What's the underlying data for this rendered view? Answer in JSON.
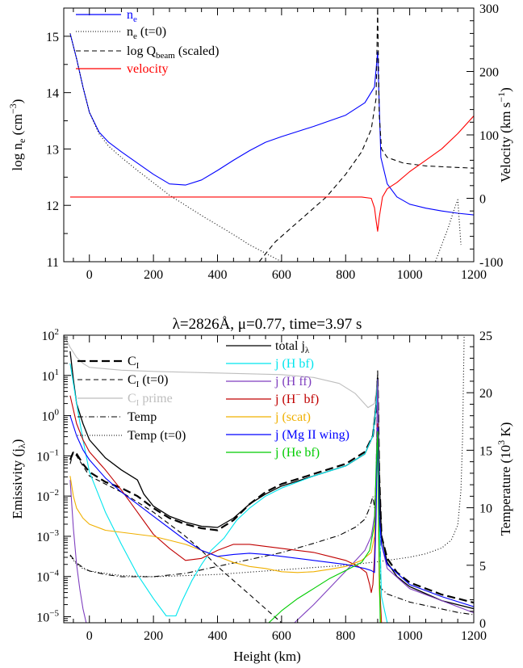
{
  "chart_data": [
    {
      "type": "line",
      "xlim": [
        -80,
        1200
      ],
      "ylim": [
        11,
        15.5
      ],
      "y2lim": [
        -100,
        300
      ],
      "x_ticks": [
        0,
        200,
        400,
        600,
        800,
        1000,
        1200
      ],
      "y_ticks": [
        11,
        12,
        13,
        14,
        15
      ],
      "y2_ticks": [
        -100,
        0,
        100,
        200,
        300
      ],
      "ylabel": "log n_e (cm^-3)",
      "y2label": "Velocity (km s^-1)",
      "legend": {
        "placement": "top-left",
        "entries": [
          {
            "label": "n_e",
            "color": "#0000ff"
          },
          {
            "label": "n_e (t=0)",
            "color": "#000000"
          },
          {
            "label": "log Q_beam (scaled)",
            "color": "#000000"
          },
          {
            "label": "velocity",
            "color": "#ff0000"
          }
        ]
      },
      "series": [
        {
          "name": "n_e",
          "axis": "left",
          "color": "#0000ff",
          "dash": "solid",
          "x": [
            -60,
            -40,
            -20,
            0,
            30,
            60,
            100,
            150,
            200,
            250,
            300,
            350,
            400,
            450,
            500,
            550,
            600,
            700,
            800,
            860,
            890,
            900,
            910,
            930,
            960,
            1000,
            1050,
            1100,
            1150,
            1200
          ],
          "y": [
            15.05,
            14.6,
            14.1,
            13.65,
            13.3,
            13.12,
            12.95,
            12.75,
            12.55,
            12.38,
            12.36,
            12.45,
            12.62,
            12.8,
            12.97,
            13.12,
            13.22,
            13.4,
            13.6,
            13.82,
            14.1,
            14.72,
            12.85,
            12.38,
            12.15,
            12.02,
            11.95,
            11.9,
            11.86,
            11.83
          ]
        },
        {
          "name": "n_e (t=0)",
          "axis": "left",
          "color": "#000000",
          "dash": "dotted",
          "x": [
            -60,
            -40,
            -20,
            0,
            30,
            60,
            100,
            150,
            200,
            250,
            300,
            350,
            400,
            450,
            500,
            550,
            600,
            1080,
            1100,
            1120,
            1140,
            1150,
            1160
          ],
          "y": [
            15.05,
            14.6,
            14.1,
            13.65,
            13.27,
            13.05,
            12.85,
            12.62,
            12.4,
            12.18,
            12.0,
            11.82,
            11.65,
            11.48,
            11.3,
            11.15,
            11.0,
            11.0,
            11.3,
            11.6,
            11.95,
            12.1,
            11.3
          ]
        },
        {
          "name": "log Q_beam (scaled)",
          "axis": "left",
          "color": "#000000",
          "dash": "dashed",
          "x": [
            530,
            580,
            620,
            680,
            740,
            800,
            850,
            880,
            895,
            900,
            905,
            912,
            930,
            980,
            1050,
            1120,
            1200
          ],
          "y": [
            11.0,
            11.35,
            11.55,
            11.85,
            12.15,
            12.55,
            12.95,
            13.35,
            13.9,
            15.5,
            13.6,
            13.0,
            12.85,
            12.75,
            12.7,
            12.68,
            12.66
          ]
        },
        {
          "name": "velocity",
          "axis": "right",
          "color": "#ff0000",
          "dash": "solid",
          "x": [
            -60,
            0,
            200,
            400,
            600,
            800,
            850,
            880,
            890,
            895,
            900,
            905,
            915,
            930,
            960,
            1000,
            1050,
            1100,
            1150,
            1200
          ],
          "y": [
            2,
            2,
            2,
            2,
            2,
            2,
            2,
            0,
            -15,
            -35,
            -52,
            -30,
            2,
            15,
            25,
            42,
            60,
            78,
            102,
            130
          ]
        }
      ]
    },
    {
      "type": "line",
      "title": "λ=2826Å, μ=0.77, time=3.97 s",
      "xlabel": "Height (km)",
      "ylabel": "Emissivity (j_λ)",
      "y2label": "Temperature (10^3 K)",
      "xlim": [
        -80,
        1200
      ],
      "ylim_log10": [
        -5.15,
        2
      ],
      "y_scale": "log",
      "y2lim": [
        0,
        25
      ],
      "x_ticks": [
        0,
        200,
        400,
        600,
        800,
        1000,
        1200
      ],
      "y_ticks": [
        "10^-5",
        "10^-4",
        "10^-3",
        "10^-2",
        "10^-1",
        "10^0",
        "10^1",
        "10^2"
      ],
      "y2_ticks": [
        0,
        5,
        10,
        15,
        20,
        25
      ],
      "legend": {
        "placement": "top",
        "entries": [
          {
            "label": "C_I",
            "color": "#000000"
          },
          {
            "label": "C_I (t=0)",
            "color": "#000000"
          },
          {
            "label": "C_I prime",
            "color": "#bebebe"
          },
          {
            "label": "Temp",
            "color": "#000000"
          },
          {
            "label": "Temp (t=0)",
            "color": "#000000"
          },
          {
            "label": "total j_λ",
            "color": "#000000"
          },
          {
            "label": "j (H bf)",
            "color": "#00e5ee"
          },
          {
            "label": "j (H ff)",
            "color": "#7f3fbf"
          },
          {
            "label": "j (H^- bf)",
            "color": "#c00000"
          },
          {
            "label": "j (scat)",
            "color": "#f0b000"
          },
          {
            "label": "j (Mg II wing)",
            "color": "#0000ff"
          },
          {
            "label": "j (He bf)",
            "color": "#00cc00"
          }
        ]
      },
      "series": [
        {
          "name": "C_I",
          "axis": "left",
          "color": "#000000",
          "dash": "longdash",
          "width": 2.2,
          "x": [
            -60,
            -50,
            -40,
            -20,
            0,
            50,
            100,
            150,
            200,
            250,
            300,
            350,
            400,
            450,
            500,
            550,
            600,
            700,
            800,
            860,
            885,
            895,
            900,
            905,
            912,
            930,
            960,
            1000,
            1100,
            1150,
            1200
          ],
          "y": [
            -1.1,
            -0.9,
            -0.95,
            -1.2,
            -1.4,
            -1.65,
            -1.8,
            -2.0,
            -2.3,
            -2.55,
            -2.7,
            -2.8,
            -2.85,
            -2.6,
            -2.2,
            -1.9,
            -1.7,
            -1.45,
            -1.2,
            -0.9,
            -0.5,
            0.2,
            0.95,
            -1.5,
            -3.0,
            -3.55,
            -3.9,
            -4.15,
            -4.45,
            -4.55,
            -4.65
          ]
        },
        {
          "name": "C_I (t=0)",
          "axis": "left",
          "color": "#000000",
          "dash": "dashed",
          "x": [
            -60,
            -50,
            -40,
            -20,
            0,
            50,
            100,
            150,
            200,
            250,
            300,
            350,
            400,
            450,
            500,
            550,
            600
          ],
          "y": [
            -1.2,
            -0.9,
            -1.0,
            -1.25,
            -1.5,
            -1.7,
            -1.9,
            -2.15,
            -2.4,
            -2.7,
            -3.0,
            -3.35,
            -3.75,
            -4.1,
            -4.45,
            -4.8,
            -5.15
          ]
        },
        {
          "name": "C_I prime",
          "axis": "left",
          "color": "#bebebe",
          "dash": "solid",
          "x": [
            -80,
            -60,
            -40,
            -20,
            0,
            100,
            200,
            300,
            400,
            500,
            600,
            700,
            780,
            830,
            870,
            890,
            900,
            905
          ],
          "y": [
            2.0,
            1.7,
            1.45,
            1.3,
            1.2,
            1.13,
            1.1,
            1.08,
            1.06,
            1.04,
            1.02,
            0.95,
            0.8,
            0.55,
            0.2,
            0.3,
            0.9,
            -4.0
          ]
        },
        {
          "name": "Temp",
          "axis": "right",
          "color": "#000000",
          "dash": "dashdot",
          "x": [
            -60,
            -40,
            -20,
            0,
            50,
            100,
            200,
            300,
            400,
            500,
            600,
            700,
            780,
            830,
            860,
            875,
            885,
            890,
            895,
            900,
            905,
            910,
            930,
            1000,
            1100,
            1150,
            1200
          ],
          "y": [
            5.9,
            5.2,
            4.8,
            4.5,
            4.2,
            4.0,
            4.0,
            4.3,
            4.9,
            5.5,
            6.1,
            6.9,
            7.6,
            8.3,
            9.0,
            10.0,
            11.0,
            10.0,
            12.5,
            22.0,
            14.0,
            3.0,
            2.5,
            1.8,
            1.2,
            0.9,
            0.7
          ]
        },
        {
          "name": "Temp (t=0)",
          "axis": "right",
          "color": "#000000",
          "dash": "dotted",
          "x": [
            -60,
            -40,
            -20,
            0,
            50,
            100,
            200,
            300,
            400,
            500,
            600,
            700,
            800,
            900,
            1000,
            1050,
            1100,
            1130,
            1150,
            1160,
            1165,
            1170
          ],
          "y": [
            5.8,
            5.1,
            4.7,
            4.5,
            4.3,
            4.1,
            4.0,
            4.1,
            4.2,
            4.4,
            4.6,
            4.8,
            5.0,
            5.3,
            5.7,
            6.0,
            6.5,
            7.2,
            8.5,
            11.5,
            16.0,
            25.0
          ]
        },
        {
          "name": "total j_λ",
          "axis": "left",
          "color": "#000000",
          "dash": "solid",
          "width": 1.3,
          "x": [
            -60,
            -50,
            -40,
            -20,
            0,
            50,
            100,
            150,
            170,
            200,
            250,
            300,
            350,
            400,
            450,
            500,
            550,
            600,
            700,
            800,
            860,
            885,
            895,
            900,
            905,
            912,
            930,
            960,
            1000,
            1100,
            1200
          ],
          "y": [
            1.6,
            0.9,
            0.3,
            -0.2,
            -0.6,
            -1.05,
            -1.35,
            -1.6,
            -1.95,
            -2.25,
            -2.5,
            -2.65,
            -2.75,
            -2.78,
            -2.55,
            -2.2,
            -1.95,
            -1.75,
            -1.5,
            -1.25,
            -0.95,
            -0.5,
            0.3,
            0.95,
            -1.5,
            -3.0,
            -3.65,
            -4.0,
            -4.25,
            -4.6,
            -4.8
          ]
        },
        {
          "name": "j (H bf)",
          "axis": "left",
          "color": "#00e5ee",
          "dash": "solid",
          "x": [
            -60,
            -40,
            -20,
            0,
            50,
            100,
            150,
            200,
            240,
            270,
            290,
            320,
            350,
            380,
            420,
            460,
            500,
            550,
            600,
            700,
            800,
            860,
            885,
            895,
            900,
            905,
            912,
            930,
            960
          ],
          "y": [
            1.3,
            0.3,
            -0.6,
            -1.4,
            -2.4,
            -3.2,
            -3.95,
            -4.55,
            -4.98,
            -4.98,
            -4.6,
            -4.1,
            -3.7,
            -3.35,
            -3.05,
            -2.6,
            -2.3,
            -2.0,
            -1.8,
            -1.5,
            -1.25,
            -0.95,
            -0.5,
            0.2,
            0.9,
            -2.5,
            -4.5,
            -5.15,
            -5.15
          ]
        },
        {
          "name": "j (H ff)",
          "axis": "left",
          "color": "#7f3fbf",
          "dash": "solid",
          "x": [
            -60,
            -50,
            -40,
            -30,
            -20,
            -10,
            640,
            700,
            760,
            820,
            860,
            880,
            890,
            895,
            900,
            905,
            912,
            930,
            1000,
            1100,
            1200
          ],
          "y": [
            -1.6,
            -2.8,
            -3.7,
            -4.3,
            -4.8,
            -5.15,
            -5.15,
            -4.7,
            -4.2,
            -3.7,
            -3.35,
            -3.0,
            -2.5,
            -1.5,
            0.9,
            -2.5,
            -3.2,
            -3.8,
            -4.3,
            -4.6,
            -4.9
          ]
        },
        {
          "name": "j (H^- bf)",
          "axis": "left",
          "color": "#c00000",
          "dash": "solid",
          "x": [
            -60,
            -40,
            -20,
            0,
            50,
            100,
            150,
            200,
            250,
            300,
            350,
            400,
            450,
            500,
            550,
            600,
            650,
            700,
            750,
            800,
            840,
            865,
            875,
            880,
            885,
            890,
            895,
            900,
            905,
            912
          ],
          "y": [
            0.5,
            -0.2,
            -0.6,
            -0.9,
            -1.35,
            -1.85,
            -2.4,
            -2.95,
            -3.3,
            -3.6,
            -3.55,
            -3.35,
            -3.2,
            -3.2,
            -3.25,
            -3.3,
            -3.35,
            -3.4,
            -3.5,
            -3.6,
            -3.75,
            -3.9,
            -4.2,
            -4.4,
            -4.2,
            -3.5,
            -2.0,
            -0.2,
            -4.0,
            -5.15
          ]
        },
        {
          "name": "j (scat)",
          "axis": "left",
          "color": "#f0b000",
          "dash": "solid",
          "x": [
            -60,
            -50,
            -40,
            -20,
            0,
            50,
            100,
            150,
            200,
            250,
            300,
            350,
            400,
            450,
            500,
            550,
            600,
            650,
            700,
            750,
            800,
            850,
            880,
            890,
            895,
            900,
            905,
            910
          ],
          "y": [
            -1.5,
            -2.0,
            -2.3,
            -2.55,
            -2.7,
            -2.85,
            -2.9,
            -2.95,
            -3.0,
            -3.1,
            -3.2,
            -3.35,
            -3.5,
            -3.65,
            -3.75,
            -3.8,
            -3.88,
            -3.9,
            -3.88,
            -3.82,
            -3.75,
            -3.6,
            -3.4,
            -3.0,
            -1.6,
            -0.3,
            -4.3,
            -5.15
          ]
        },
        {
          "name": "j (Mg II wing)",
          "axis": "left",
          "color": "#0000ff",
          "dash": "solid",
          "x": [
            -60,
            -40,
            -20,
            0,
            50,
            100,
            150,
            200,
            250,
            300,
            350,
            400,
            450,
            500,
            550,
            600,
            700,
            800,
            860,
            880,
            890,
            895,
            900,
            905,
            912,
            930,
            1000,
            1100,
            1200
          ],
          "y": [
            0.0,
            -0.5,
            -0.85,
            -1.1,
            -1.55,
            -1.9,
            -2.2,
            -2.5,
            -2.8,
            -3.1,
            -3.35,
            -3.5,
            -3.45,
            -3.42,
            -3.45,
            -3.5,
            -3.6,
            -3.7,
            -3.8,
            -3.85,
            -3.9,
            -2.5,
            -0.3,
            -2.5,
            -3.2,
            -3.7,
            -4.2,
            -4.5,
            -4.75
          ]
        },
        {
          "name": "j (He bf)",
          "axis": "left",
          "color": "#00cc00",
          "dash": "solid",
          "x": [
            560,
            600,
            650,
            700,
            750,
            800,
            850,
            875,
            890,
            895,
            900,
            903,
            908
          ],
          "y": [
            -5.15,
            -4.85,
            -4.55,
            -4.3,
            -4.05,
            -3.85,
            -3.65,
            -3.35,
            -2.7,
            -1.3,
            -0.4,
            -2.5,
            -5.15
          ]
        }
      ]
    }
  ]
}
